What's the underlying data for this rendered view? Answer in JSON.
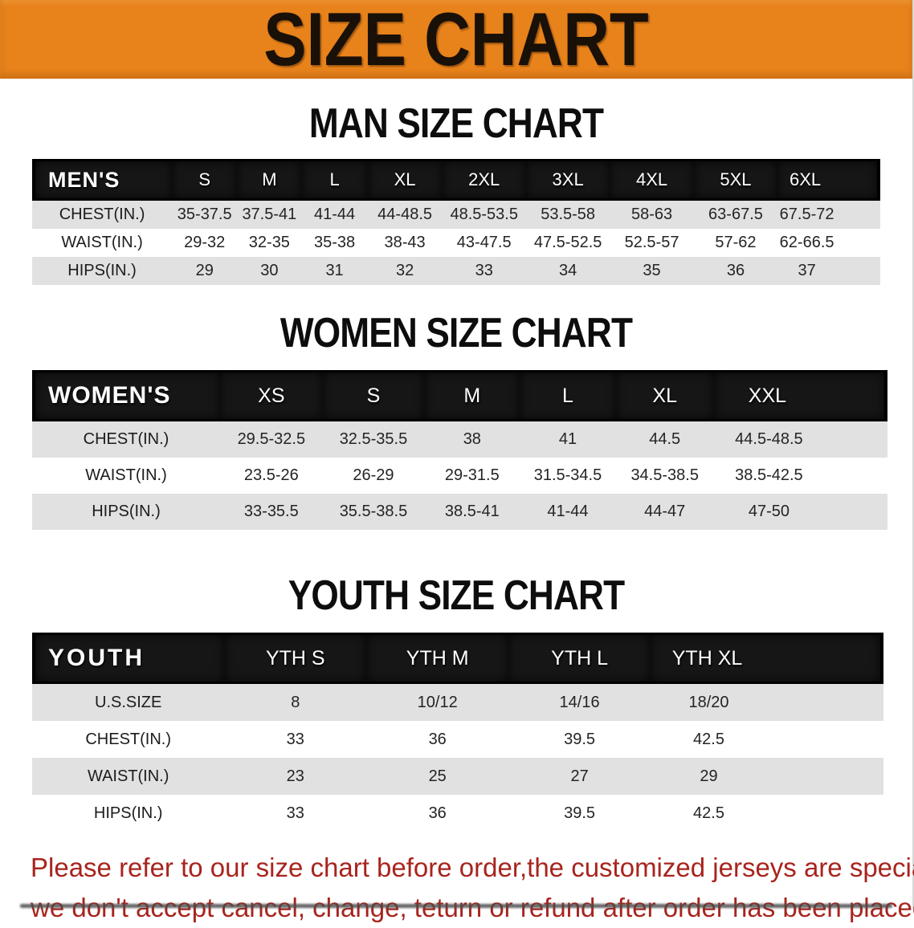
{
  "banner": {
    "title": "SIZE CHART"
  },
  "sections": [
    {
      "id": "men",
      "title": "MAN SIZE CHART",
      "header": [
        "MEN'S",
        "S",
        "M",
        "L",
        "XL",
        "2XL",
        "3XL",
        "4XL",
        "5XL",
        "6XL"
      ],
      "rows": [
        [
          "CHEST(IN.)",
          "35-37.5",
          "37.5-41",
          "41-44",
          "44-48.5",
          "48.5-53.5",
          "53.5-58",
          "58-63",
          "63-67.5",
          "67.5-72"
        ],
        [
          "WAIST(IN.)",
          "29-32",
          "32-35",
          "35-38",
          "38-43",
          "43-47.5",
          "47.5-52.5",
          "52.5-57",
          "57-62",
          "62-66.5"
        ],
        [
          "HIPS(IN.)",
          "29",
          "30",
          "31",
          "32",
          "33",
          "34",
          "35",
          "36",
          "37"
        ]
      ]
    },
    {
      "id": "women",
      "title": "WOMEN SIZE CHART",
      "header": [
        "WOMEN'S",
        "XS",
        "S",
        "M",
        "L",
        "XL",
        "XXL"
      ],
      "rows": [
        [
          "CHEST(IN.)",
          "29.5-32.5",
          "32.5-35.5",
          "38",
          "41",
          "44.5",
          "44.5-48.5"
        ],
        [
          "WAIST(IN.)",
          "23.5-26",
          "26-29",
          "29-31.5",
          "31.5-34.5",
          "34.5-38.5",
          "38.5-42.5"
        ],
        [
          "HIPS(IN.)",
          "33-35.5",
          "35.5-38.5",
          "38.5-41",
          "41-44",
          "44-47",
          "47-50"
        ]
      ]
    },
    {
      "id": "youth",
      "title": "YOUTH SIZE CHART",
      "header": [
        "YOUTH",
        "YTH S",
        "YTH M",
        "YTH L",
        "YTH XL"
      ],
      "rows": [
        [
          "U.S.SIZE",
          "8",
          "10/12",
          "14/16",
          "18/20"
        ],
        [
          "CHEST(IN.)",
          "33",
          "36",
          "39.5",
          "42.5"
        ],
        [
          "WAIST(IN.)",
          "23",
          "25",
          "27",
          "29"
        ],
        [
          "HIPS(IN.)",
          "33",
          "36",
          "39.5",
          "42.5"
        ]
      ]
    }
  ],
  "disclaimer": {
    "lines": [
      "Please refer to our size chart before order,the customized jerseys are special products,",
      "we don't accept cancel, change, teturn or refund after order has been placed!"
    ]
  },
  "colors": {
    "banner_bg": "#E8821B",
    "header_bar_bg": "#161616",
    "row_alt_bg": "#E1E1E1",
    "disclaimer_red": "#A8241E"
  }
}
